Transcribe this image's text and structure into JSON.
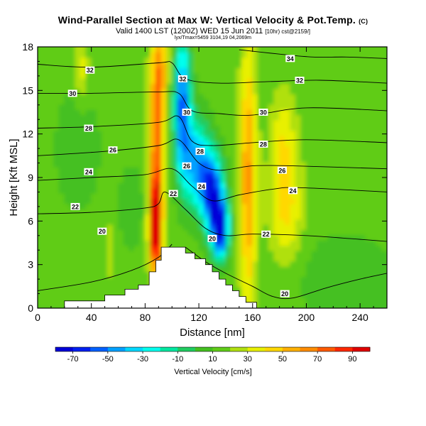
{
  "title": "Wind-Parallel Section at Max W: Vertical Velocity & Pot.Temp.",
  "title_unit": "(C)",
  "subtitle": "Valid 1400 LST (1200Z) WED 15 Jun 2011",
  "subtitle_model": "[10hr) cst@2159/]",
  "subtitle2": "lyx/Tmax=5459 3104,19 04,2069m",
  "chart_data": {
    "type": "heatmap",
    "xlabel": "Distance [nm]",
    "ylabel": "Height [Kft MSL]",
    "xlim": [
      0,
      260
    ],
    "ylim": [
      0,
      18
    ],
    "x_ticks": [
      0,
      40,
      80,
      120,
      160,
      200,
      240
    ],
    "y_ticks": [
      0,
      3,
      6,
      9,
      12,
      15,
      18
    ],
    "colorbar": {
      "label": "Vertical Velocity [cm/s]",
      "tick_labels": [
        "-70",
        "-50",
        "-30",
        "-10",
        "10",
        "30",
        "50",
        "70",
        "90"
      ],
      "tick_values": [
        -70,
        -50,
        -30,
        -10,
        10,
        30,
        50,
        70,
        90
      ],
      "bins": [
        -80,
        -70,
        -60,
        -50,
        -40,
        -30,
        -20,
        -10,
        0,
        10,
        20,
        30,
        40,
        50,
        60,
        70,
        80,
        90,
        100
      ],
      "colors": [
        "#0000d8",
        "#0020f0",
        "#0060ff",
        "#00a0ff",
        "#00d8ff",
        "#00ffee",
        "#00e8a0",
        "#20cc60",
        "#44c020",
        "#60cc18",
        "#b0e010",
        "#e8f000",
        "#ffd800",
        "#ffb000",
        "#ff8c00",
        "#ff5a00",
        "#ff2800",
        "#e00000"
      ]
    },
    "terrain": [
      [
        0,
        0
      ],
      [
        20,
        0
      ],
      [
        20,
        0.5
      ],
      [
        50,
        0.5
      ],
      [
        50,
        0.9
      ],
      [
        65,
        0.9
      ],
      [
        65,
        1.3
      ],
      [
        75,
        1.3
      ],
      [
        75,
        1.6
      ],
      [
        83,
        1.6
      ],
      [
        83,
        2.5
      ],
      [
        88,
        2.5
      ],
      [
        88,
        3.3
      ],
      [
        92,
        3.3
      ],
      [
        92,
        4.2
      ],
      [
        110,
        4.2
      ],
      [
        110,
        3.8
      ],
      [
        117,
        3.8
      ],
      [
        117,
        3.4
      ],
      [
        125,
        3.4
      ],
      [
        125,
        3.0
      ],
      [
        130,
        3.0
      ],
      [
        130,
        2.5
      ],
      [
        135,
        2.5
      ],
      [
        135,
        2.0
      ],
      [
        140,
        2.0
      ],
      [
        140,
        1.6
      ],
      [
        145,
        1.6
      ],
      [
        145,
        1.2
      ],
      [
        150,
        1.2
      ],
      [
        150,
        0.8
      ],
      [
        155,
        0.8
      ],
      [
        155,
        0.4
      ],
      [
        163,
        0.4
      ],
      [
        163,
        0
      ],
      [
        260,
        0
      ]
    ],
    "vertical_velocity_features": [
      {
        "name": "updraft-core",
        "x": [
          78,
          100
        ],
        "y": [
          3.5,
          18
        ],
        "value": 90
      },
      {
        "name": "downdraft-core",
        "x": [
          100,
          140
        ],
        "y": [
          4,
          18
        ],
        "value": -70
      },
      {
        "name": "updraft-band",
        "x": [
          150,
          165
        ],
        "y": [
          2,
          18
        ],
        "value": 50
      },
      {
        "name": "weak-updraft-east",
        "x": [
          170,
          200
        ],
        "y": [
          5,
          14
        ],
        "value": 40
      },
      {
        "name": "updraft-west",
        "x": [
          30,
          40
        ],
        "y": [
          12,
          18
        ],
        "value": 30
      }
    ],
    "isentropes": [
      {
        "label": "20",
        "points": [
          [
            0,
            1.2
          ],
          [
            40,
            1.8
          ],
          [
            70,
            2.6
          ],
          [
            90,
            3.5
          ],
          [
            100,
            4.4
          ]
        ],
        "label_at": [
          [
            48,
            5.3
          ]
        ]
      },
      {
        "label": "20",
        "points": [
          [
            110,
            4.2
          ],
          [
            125,
            3.2
          ],
          [
            140,
            2.4
          ],
          [
            160,
            1.5
          ],
          [
            175,
            0.8
          ],
          [
            190,
            0.7
          ],
          [
            215,
            1.4
          ],
          [
            240,
            2.0
          ],
          [
            260,
            2.4
          ]
        ],
        "label_at": [
          [
            130,
            4.8
          ],
          [
            184,
            1.0
          ]
        ]
      },
      {
        "label": "22",
        "points": [
          [
            0,
            6.5
          ],
          [
            40,
            6.6
          ],
          [
            80,
            6.9
          ],
          [
            90,
            7.2
          ],
          [
            95,
            8.0
          ],
          [
            110,
            6.8
          ],
          [
            125,
            5.5
          ],
          [
            140,
            5.0
          ],
          [
            160,
            5.1
          ],
          [
            200,
            5.0
          ],
          [
            260,
            4.6
          ]
        ],
        "label_at": [
          [
            28,
            7.0
          ],
          [
            101,
            7.9
          ],
          [
            170,
            5.1
          ]
        ]
      },
      {
        "label": "24",
        "points": [
          [
            0,
            8.8
          ],
          [
            40,
            9.0
          ],
          [
            80,
            9.2
          ],
          [
            100,
            9.6
          ],
          [
            115,
            8.4
          ],
          [
            130,
            7.4
          ],
          [
            150,
            7.8
          ],
          [
            175,
            8.2
          ],
          [
            195,
            8.3
          ],
          [
            260,
            8.0
          ]
        ],
        "label_at": [
          [
            38,
            9.4
          ],
          [
            122,
            8.4
          ],
          [
            190,
            8.1
          ]
        ]
      },
      {
        "label": "26",
        "points": [
          [
            0,
            10.5
          ],
          [
            50,
            10.8
          ],
          [
            90,
            11.2
          ],
          [
            105,
            11.6
          ],
          [
            120,
            10.0
          ],
          [
            135,
            9.5
          ],
          [
            160,
            9.8
          ],
          [
            190,
            9.8
          ],
          [
            260,
            9.6
          ]
        ],
        "label_at": [
          [
            56,
            10.9
          ],
          [
            111,
            9.8
          ],
          [
            182,
            9.5
          ]
        ]
      },
      {
        "label": "28",
        "points": [
          [
            0,
            12.4
          ],
          [
            40,
            12.5
          ],
          [
            90,
            12.8
          ],
          [
            105,
            13.2
          ],
          [
            115,
            11.5
          ],
          [
            130,
            11.2
          ],
          [
            160,
            11.4
          ],
          [
            200,
            11.6
          ],
          [
            260,
            11.4
          ]
        ],
        "label_at": [
          [
            38,
            12.4
          ],
          [
            121,
            10.8
          ],
          [
            168,
            11.3
          ]
        ]
      },
      {
        "label": "30",
        "points": [
          [
            0,
            14.8
          ],
          [
            40,
            14.8
          ],
          [
            90,
            14.9
          ],
          [
            105,
            14.8
          ],
          [
            115,
            13.6
          ],
          [
            135,
            13.4
          ],
          [
            160,
            13.3
          ],
          [
            200,
            13.8
          ],
          [
            260,
            13.6
          ]
        ],
        "label_at": [
          [
            26,
            14.8
          ],
          [
            111,
            13.5
          ],
          [
            168,
            13.5
          ]
        ]
      },
      {
        "label": "32",
        "points": [
          [
            0,
            16.8
          ],
          [
            40,
            16.6
          ],
          [
            90,
            16.9
          ],
          [
            100,
            16.9
          ],
          [
            110,
            15.8
          ],
          [
            135,
            15.5
          ],
          [
            170,
            15.6
          ],
          [
            210,
            15.7
          ],
          [
            260,
            15.5
          ]
        ],
        "label_at": [
          [
            39,
            16.4
          ],
          [
            108,
            15.8
          ],
          [
            195,
            15.7
          ]
        ]
      },
      {
        "label": "34",
        "points": [
          [
            150,
            17.8
          ],
          [
            180,
            17.5
          ],
          [
            205,
            17.3
          ],
          [
            230,
            17.3
          ],
          [
            260,
            17.2
          ]
        ],
        "label_at": [
          [
            188,
            17.2
          ]
        ]
      }
    ]
  }
}
